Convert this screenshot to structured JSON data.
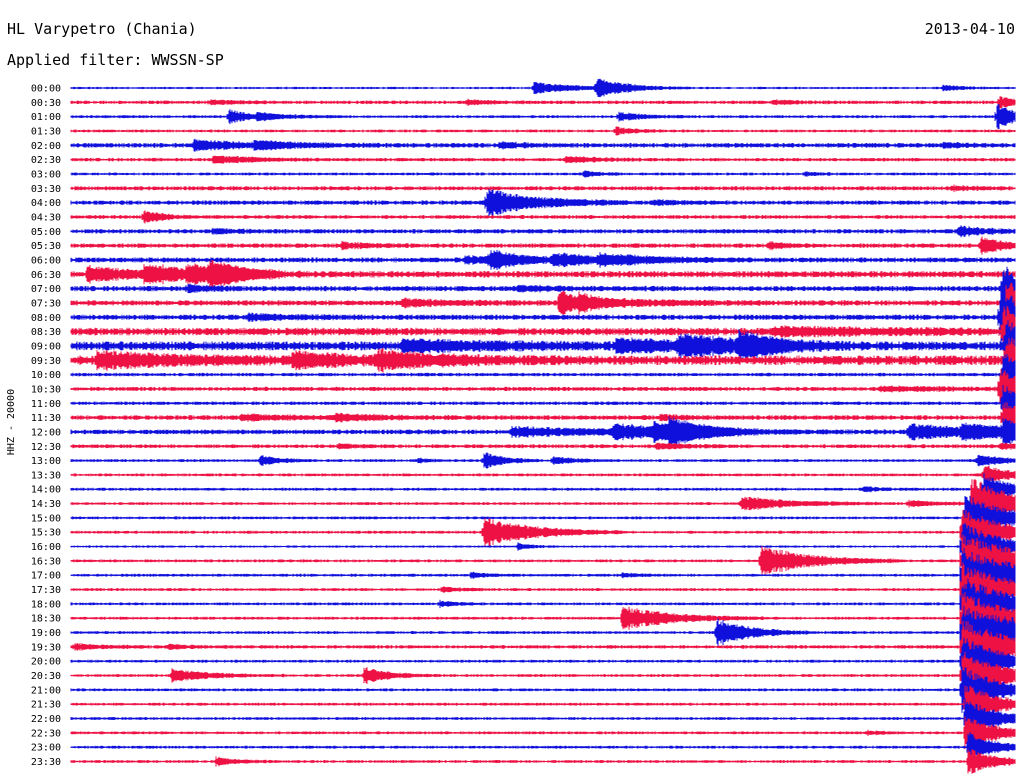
{
  "header": {
    "station": "HL Varypetro (Chania)",
    "date": "2013-04-10",
    "filter_text": "Applied filter: WWSSN-SP",
    "channel_label": "HHZ - 20000"
  },
  "colors": {
    "even_line": "#1010dd",
    "odd_line": "#ee1144",
    "background": "#ffffff",
    "text": "#000000"
  },
  "chart_data": {
    "type": "line",
    "chart_kind": "helicorder",
    "time_labels": [
      "00:00",
      "00:30",
      "01:00",
      "01:30",
      "02:00",
      "02:30",
      "03:00",
      "03:30",
      "04:00",
      "04:30",
      "05:00",
      "05:30",
      "06:00",
      "06:30",
      "07:00",
      "07:30",
      "08:00",
      "08:30",
      "09:00",
      "09:30",
      "10:00",
      "10:30",
      "11:00",
      "11:30",
      "12:00",
      "12:30",
      "13:00",
      "13:30",
      "14:00",
      "14:30",
      "15:00",
      "15:30",
      "16:00",
      "16:30",
      "17:00",
      "17:30",
      "18:00",
      "18:30",
      "19:00",
      "19:30",
      "20:00",
      "20:30",
      "21:00",
      "21:30",
      "22:00",
      "22:30",
      "23:00",
      "23:30"
    ],
    "line_duration_minutes": 30,
    "x_range_minutes": [
      0,
      30
    ],
    "noise_level": [
      0.8,
      1.2,
      1.0,
      1.0,
      1.6,
      1.2,
      1.0,
      1.4,
      1.5,
      1.3,
      1.5,
      1.5,
      1.7,
      2.2,
      1.8,
      1.8,
      1.8,
      2.6,
      3.0,
      3.2,
      1.2,
      1.4,
      1.2,
      1.6,
      1.6,
      1.3,
      1.0,
      1.0,
      1.0,
      1.0,
      1.0,
      1.0,
      0.8,
      1.0,
      1.0,
      1.0,
      1.0,
      1.0,
      1.0,
      1.2,
      1.0,
      1.0,
      1.0,
      1.0,
      1.0,
      1.0,
      1.0,
      1.0
    ],
    "events": [
      {
        "line": 0,
        "minute": 14.7,
        "amplitude": 6,
        "duration_min": 1.2
      },
      {
        "line": 0,
        "minute": 16.7,
        "amplitude": 9,
        "duration_min": 1.0
      },
      {
        "line": 0,
        "minute": 27.7,
        "amplitude": 3,
        "duration_min": 0.6
      },
      {
        "line": 1,
        "minute": 4.4,
        "amplitude": 2,
        "duration_min": 0.8
      },
      {
        "line": 1,
        "minute": 12.6,
        "amplitude": 2,
        "duration_min": 0.8
      },
      {
        "line": 1,
        "minute": 22.3,
        "amplitude": 2,
        "duration_min": 0.6
      },
      {
        "line": 1,
        "minute": 29.5,
        "amplitude": 6,
        "duration_min": 0.5
      },
      {
        "line": 2,
        "minute": 5.0,
        "amplitude": 7,
        "duration_min": 0.6
      },
      {
        "line": 2,
        "minute": 5.9,
        "amplitude": 3,
        "duration_min": 1.0
      },
      {
        "line": 2,
        "minute": 17.4,
        "amplitude": 4,
        "duration_min": 0.8
      },
      {
        "line": 2,
        "minute": 29.4,
        "amplitude": 14,
        "duration_min": 0.6
      },
      {
        "line": 3,
        "minute": 17.3,
        "amplitude": 4,
        "duration_min": 0.5
      },
      {
        "line": 4,
        "minute": 3.9,
        "amplitude": 5,
        "duration_min": 1.5
      },
      {
        "line": 4,
        "minute": 5.8,
        "amplitude": 3,
        "duration_min": 1.5
      },
      {
        "line": 4,
        "minute": 13.6,
        "amplitude": 3,
        "duration_min": 0.7
      },
      {
        "line": 4,
        "minute": 27.7,
        "amplitude": 2,
        "duration_min": 0.6
      },
      {
        "line": 5,
        "minute": 4.5,
        "amplitude": 4,
        "duration_min": 1.2
      },
      {
        "line": 5,
        "minute": 15.7,
        "amplitude": 4,
        "duration_min": 0.8
      },
      {
        "line": 6,
        "minute": 16.3,
        "amplitude": 3,
        "duration_min": 0.4
      },
      {
        "line": 6,
        "minute": 23.3,
        "amplitude": 2,
        "duration_min": 0.4
      },
      {
        "line": 7,
        "minute": 28.0,
        "amplitude": 2,
        "duration_min": 0.6
      },
      {
        "line": 8,
        "minute": 13.2,
        "amplitude": 14,
        "duration_min": 1.5
      },
      {
        "line": 8,
        "minute": 18.5,
        "amplitude": 2,
        "duration_min": 0.8
      },
      {
        "line": 9,
        "minute": 2.3,
        "amplitude": 6,
        "duration_min": 0.6
      },
      {
        "line": 10,
        "minute": 4.5,
        "amplitude": 2,
        "duration_min": 0.8
      },
      {
        "line": 10,
        "minute": 28.2,
        "amplitude": 5,
        "duration_min": 0.8
      },
      {
        "line": 11,
        "minute": 8.6,
        "amplitude": 3,
        "duration_min": 0.8
      },
      {
        "line": 11,
        "minute": 22.2,
        "amplitude": 3,
        "duration_min": 0.6
      },
      {
        "line": 11,
        "minute": 28.9,
        "amplitude": 8,
        "duration_min": 0.8
      },
      {
        "line": 12,
        "minute": 12.5,
        "amplitude": 3,
        "duration_min": 1.5
      },
      {
        "line": 12,
        "minute": 13.3,
        "amplitude": 8,
        "duration_min": 1.0
      },
      {
        "line": 12,
        "minute": 15.3,
        "amplitude": 5,
        "duration_min": 2.0
      },
      {
        "line": 12,
        "minute": 16.8,
        "amplitude": 4,
        "duration_min": 1.5
      },
      {
        "line": 13,
        "minute": 0.5,
        "amplitude": 7,
        "duration_min": 1.5
      },
      {
        "line": 13,
        "minute": 2.3,
        "amplitude": 8,
        "duration_min": 1.5
      },
      {
        "line": 13,
        "minute": 3.7,
        "amplitude": 7,
        "duration_min": 1.0
      },
      {
        "line": 13,
        "minute": 4.4,
        "amplitude": 10,
        "duration_min": 1.0
      },
      {
        "line": 14,
        "minute": 3.7,
        "amplitude": 4,
        "duration_min": 0.5
      },
      {
        "line": 14,
        "minute": 14.2,
        "amplitude": 2,
        "duration_min": 1.5
      },
      {
        "line": 14,
        "minute": 29.6,
        "amplitude": 24,
        "duration_min": 0.8
      },
      {
        "line": 15,
        "minute": 10.5,
        "amplitude": 3,
        "duration_min": 1.5
      },
      {
        "line": 15,
        "minute": 15.5,
        "amplitude": 14,
        "duration_min": 0.6
      },
      {
        "line": 15,
        "minute": 16.1,
        "amplitude": 5,
        "duration_min": 2.0
      },
      {
        "line": 15,
        "minute": 29.7,
        "amplitude": 24,
        "duration_min": 0.8
      },
      {
        "line": 16,
        "minute": 5.6,
        "amplitude": 3,
        "duration_min": 1.2
      },
      {
        "line": 16,
        "minute": 29.5,
        "amplitude": 26,
        "duration_min": 1.5
      },
      {
        "line": 17,
        "minute": 22.3,
        "amplitude": 3,
        "duration_min": 4.0
      },
      {
        "line": 17,
        "minute": 29.6,
        "amplitude": 26,
        "duration_min": 1.5
      },
      {
        "line": 18,
        "minute": 10.5,
        "amplitude": 5,
        "duration_min": 3.0
      },
      {
        "line": 18,
        "minute": 17.3,
        "amplitude": 6,
        "duration_min": 2.0
      },
      {
        "line": 18,
        "minute": 19.3,
        "amplitude": 9,
        "duration_min": 2.0
      },
      {
        "line": 18,
        "minute": 21.2,
        "amplitude": 12,
        "duration_min": 1.0
      },
      {
        "line": 18,
        "minute": 29.7,
        "amplitude": 26,
        "duration_min": 1.0
      },
      {
        "line": 19,
        "minute": 0.8,
        "amplitude": 7,
        "duration_min": 2.5
      },
      {
        "line": 19,
        "minute": 7.0,
        "amplitude": 6,
        "duration_min": 2.0
      },
      {
        "line": 19,
        "minute": 9.7,
        "amplitude": 7,
        "duration_min": 2.0
      },
      {
        "line": 19,
        "minute": 29.7,
        "amplitude": 24,
        "duration_min": 1.0
      },
      {
        "line": 20,
        "minute": 29.6,
        "amplitude": 24,
        "duration_min": 0.8
      },
      {
        "line": 21,
        "minute": 25.7,
        "amplitude": 2,
        "duration_min": 2.5
      },
      {
        "line": 21,
        "minute": 29.5,
        "amplitude": 22,
        "duration_min": 0.8
      },
      {
        "line": 22,
        "minute": 29.6,
        "amplitude": 22,
        "duration_min": 0.8
      },
      {
        "line": 23,
        "minute": 5.4,
        "amplitude": 3,
        "duration_min": 1.5
      },
      {
        "line": 23,
        "minute": 8.4,
        "amplitude": 3,
        "duration_min": 1.5
      },
      {
        "line": 23,
        "minute": 18.7,
        "amplitude": 2,
        "duration_min": 0.8
      },
      {
        "line": 23,
        "minute": 29.6,
        "amplitude": 16,
        "duration_min": 0.8
      },
      {
        "line": 24,
        "minute": 14.0,
        "amplitude": 4,
        "duration_min": 4.0
      },
      {
        "line": 24,
        "minute": 17.2,
        "amplitude": 6,
        "duration_min": 2.0
      },
      {
        "line": 24,
        "minute": 18.5,
        "amplitude": 6,
        "duration_min": 1.0
      },
      {
        "line": 24,
        "minute": 19.0,
        "amplitude": 9,
        "duration_min": 1.0
      },
      {
        "line": 24,
        "minute": 26.6,
        "amplitude": 7,
        "duration_min": 3.0
      },
      {
        "line": 24,
        "minute": 28.3,
        "amplitude": 5,
        "duration_min": 1.5
      },
      {
        "line": 24,
        "minute": 29.6,
        "amplitude": 10,
        "duration_min": 0.8
      },
      {
        "line": 25,
        "minute": 8.5,
        "amplitude": 2,
        "duration_min": 0.6
      },
      {
        "line": 25,
        "minute": 18.6,
        "amplitude": 3,
        "duration_min": 0.8
      },
      {
        "line": 25,
        "minute": 29.5,
        "amplitude": 3,
        "duration_min": 0.6
      },
      {
        "line": 26,
        "minute": 6.0,
        "amplitude": 5,
        "duration_min": 0.6
      },
      {
        "line": 26,
        "minute": 11.0,
        "amplitude": 2,
        "duration_min": 0.4
      },
      {
        "line": 26,
        "minute": 13.1,
        "amplitude": 9,
        "duration_min": 0.6
      },
      {
        "line": 26,
        "minute": 15.3,
        "amplitude": 4,
        "duration_min": 0.6
      },
      {
        "line": 26,
        "minute": 28.8,
        "amplitude": 6,
        "duration_min": 0.8
      },
      {
        "line": 27,
        "minute": 29.0,
        "amplitude": 10,
        "duration_min": 0.8
      },
      {
        "line": 28,
        "minute": 25.2,
        "amplitude": 3,
        "duration_min": 0.4
      },
      {
        "line": 28,
        "minute": 29.0,
        "amplitude": 16,
        "duration_min": 0.8
      },
      {
        "line": 29,
        "minute": 21.3,
        "amplitude": 7,
        "duration_min": 1.5
      },
      {
        "line": 29,
        "minute": 26.6,
        "amplitude": 3,
        "duration_min": 1.0
      },
      {
        "line": 29,
        "minute": 28.6,
        "amplitude": 28,
        "duration_min": 1.2
      },
      {
        "line": 30,
        "minute": 28.4,
        "amplitude": 26,
        "duration_min": 1.2
      },
      {
        "line": 31,
        "minute": 13.1,
        "amplitude": 15,
        "duration_min": 1.5
      },
      {
        "line": 31,
        "minute": 28.3,
        "amplitude": 26,
        "duration_min": 1.2
      },
      {
        "line": 32,
        "minute": 14.2,
        "amplitude": 3,
        "duration_min": 0.4
      },
      {
        "line": 32,
        "minute": 28.3,
        "amplitude": 26,
        "duration_min": 1.2
      },
      {
        "line": 33,
        "minute": 21.9,
        "amplitude": 15,
        "duration_min": 1.5
      },
      {
        "line": 33,
        "minute": 28.3,
        "amplitude": 28,
        "duration_min": 2.0
      },
      {
        "line": 34,
        "minute": 12.7,
        "amplitude": 3,
        "duration_min": 0.5
      },
      {
        "line": 34,
        "minute": 17.5,
        "amplitude": 2,
        "duration_min": 0.5
      },
      {
        "line": 34,
        "minute": 28.3,
        "amplitude": 28,
        "duration_min": 2.0
      },
      {
        "line": 35,
        "minute": 11.8,
        "amplitude": 3,
        "duration_min": 0.5
      },
      {
        "line": 35,
        "minute": 28.3,
        "amplitude": 28,
        "duration_min": 1.5
      },
      {
        "line": 36,
        "minute": 11.7,
        "amplitude": 3,
        "duration_min": 0.5
      },
      {
        "line": 36,
        "minute": 28.3,
        "amplitude": 28,
        "duration_min": 1.5
      },
      {
        "line": 37,
        "minute": 17.5,
        "amplitude": 12,
        "duration_min": 1.5
      },
      {
        "line": 37,
        "minute": 28.3,
        "amplitude": 28,
        "duration_min": 1.5
      },
      {
        "line": 38,
        "minute": 20.5,
        "amplitude": 15,
        "duration_min": 1.0
      },
      {
        "line": 38,
        "minute": 28.3,
        "amplitude": 28,
        "duration_min": 2.5
      },
      {
        "line": 39,
        "minute": 0.1,
        "amplitude": 3,
        "duration_min": 0.8
      },
      {
        "line": 39,
        "minute": 3.1,
        "amplitude": 2,
        "duration_min": 0.6
      },
      {
        "line": 39,
        "minute": 28.3,
        "amplitude": 28,
        "duration_min": 1.5
      },
      {
        "line": 40,
        "minute": 28.3,
        "amplitude": 26,
        "duration_min": 1.2
      },
      {
        "line": 41,
        "minute": 3.2,
        "amplitude": 6,
        "duration_min": 1.2
      },
      {
        "line": 41,
        "minute": 9.3,
        "amplitude": 8,
        "duration_min": 0.8
      },
      {
        "line": 41,
        "minute": 28.3,
        "amplitude": 26,
        "duration_min": 1.2
      },
      {
        "line": 42,
        "minute": 28.3,
        "amplitude": 24,
        "duration_min": 1.2
      },
      {
        "line": 43,
        "minute": 28.4,
        "amplitude": 22,
        "duration_min": 1.0
      },
      {
        "line": 44,
        "minute": 28.4,
        "amplitude": 20,
        "duration_min": 1.0
      },
      {
        "line": 45,
        "minute": 25.3,
        "amplitude": 2,
        "duration_min": 0.5
      },
      {
        "line": 45,
        "minute": 28.4,
        "amplitude": 18,
        "duration_min": 1.0
      },
      {
        "line": 46,
        "minute": 28.5,
        "amplitude": 16,
        "duration_min": 0.8
      },
      {
        "line": 47,
        "minute": 4.6,
        "amplitude": 4,
        "duration_min": 0.6
      },
      {
        "line": 47,
        "minute": 28.5,
        "amplitude": 14,
        "duration_min": 0.8
      }
    ]
  }
}
